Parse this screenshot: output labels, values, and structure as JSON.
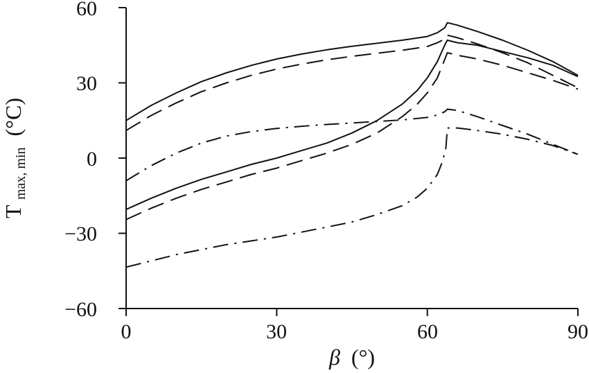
{
  "chart_data": {
    "type": "line",
    "title": "",
    "xlabel": "β",
    "xlabel_unit": "(°)",
    "ylabel": "T",
    "ylabel_subscript": "max, min",
    "ylabel_unit": "(°C)",
    "xlim": [
      0,
      90
    ],
    "ylim": [
      -60,
      60
    ],
    "x_ticks": [
      0,
      30,
      60,
      90
    ],
    "y_ticks": [
      60,
      30,
      0,
      -30,
      -60
    ],
    "x_tick_labels": [
      "0",
      "30",
      "60",
      "90"
    ],
    "y_tick_labels": [
      "60",
      "30",
      "0",
      "−30",
      "−60"
    ],
    "grid": false,
    "legend": "none",
    "line_color": "#111111",
    "series": [
      {
        "style": "solid",
        "x": [
          0,
          5,
          10,
          15,
          20,
          25,
          30,
          35,
          40,
          45,
          50,
          55,
          60,
          62,
          63.5,
          64,
          66,
          70,
          75,
          80,
          85,
          90
        ],
        "y": [
          15,
          21,
          26,
          30.5,
          34,
          37,
          39.5,
          41.5,
          43.2,
          44.6,
          45.8,
          47,
          48.5,
          50,
          52,
          54,
          53,
          50.5,
          47,
          43,
          38.5,
          33
        ]
      },
      {
        "style": "dashed",
        "x": [
          0,
          5,
          10,
          15,
          20,
          25,
          30,
          35,
          40,
          45,
          50,
          55,
          60,
          62,
          63.5,
          64,
          66,
          70,
          75,
          80,
          85,
          90
        ],
        "y": [
          11,
          17,
          22,
          26.5,
          30,
          33,
          35.5,
          37.5,
          39.2,
          40.6,
          41.8,
          43,
          44.5,
          46,
          47.5,
          49,
          48,
          45.5,
          42,
          38,
          33,
          28
        ]
      },
      {
        "style": "dash-dot",
        "x": [
          0,
          5,
          10,
          15,
          20,
          25,
          30,
          35,
          40,
          45,
          50,
          55,
          60,
          62,
          63.5,
          64,
          66,
          70,
          75,
          80,
          85,
          90
        ],
        "y": [
          -9,
          -3,
          2,
          6,
          8.8,
          10.6,
          11.8,
          12.7,
          13.4,
          14,
          14.6,
          15.2,
          16.2,
          17.2,
          18.5,
          19.5,
          19,
          16.5,
          13,
          9.5,
          5.5,
          1.5
        ]
      },
      {
        "style": "solid",
        "x": [
          0,
          5,
          10,
          15,
          20,
          25,
          30,
          35,
          40,
          45,
          50,
          55,
          58,
          60,
          62,
          63,
          63.7,
          64,
          66,
          70,
          75,
          80,
          85,
          90
        ],
        "y": [
          -20.5,
          -16,
          -12,
          -8.5,
          -5.5,
          -2.5,
          0,
          3,
          6,
          10,
          15,
          21.5,
          27,
          32,
          38.5,
          43,
          46,
          47,
          46,
          45,
          42.5,
          40,
          37,
          32.5
        ]
      },
      {
        "style": "dashed",
        "x": [
          0,
          5,
          10,
          15,
          20,
          25,
          30,
          35,
          40,
          45,
          50,
          55,
          58,
          60,
          62,
          63,
          63.7,
          64,
          66,
          70,
          75,
          80,
          85,
          90
        ],
        "y": [
          -24.5,
          -20,
          -16,
          -12.5,
          -9.5,
          -6.5,
          -4,
          -1,
          2,
          5.5,
          10,
          16.5,
          21.5,
          26,
          32,
          37,
          40.5,
          42,
          41,
          39.5,
          37,
          34,
          31,
          27.5
        ]
      },
      {
        "style": "dash-dot",
        "x": [
          0,
          5,
          10,
          15,
          20,
          25,
          30,
          35,
          40,
          45,
          50,
          55,
          58,
          60,
          62,
          63,
          63.7,
          64,
          66,
          70,
          75,
          80,
          85,
          90
        ],
        "y": [
          -43.5,
          -41,
          -38.5,
          -36.5,
          -34.5,
          -33,
          -31.5,
          -29.5,
          -27.5,
          -25.5,
          -22.5,
          -19,
          -15.5,
          -12,
          -6.5,
          -1.5,
          4,
          12,
          12,
          11,
          9.5,
          7.5,
          5,
          1.5
        ]
      }
    ]
  }
}
